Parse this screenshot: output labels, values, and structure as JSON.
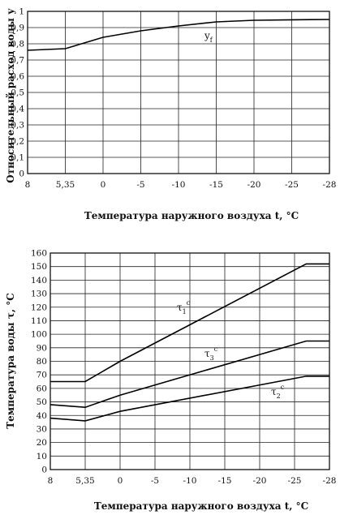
{
  "chart_data": [
    {
      "type": "line",
      "xlabel": "Температура наружного воздуха t, °C",
      "ylabel": "Относительный расход воды у",
      "x_ticks": [
        "8",
        "5,35",
        "0",
        "-5",
        "-10",
        "-15",
        "-20",
        "-25",
        "-28"
      ],
      "xlim": [
        8,
        -28
      ],
      "ylim": [
        0,
        1
      ],
      "y_ticks": [
        "0",
        "0,1",
        "0,2",
        "0,3",
        "0,4",
        "0,5",
        "0,6",
        "0,7",
        "0,8",
        "0,9",
        "1"
      ],
      "grid": true,
      "series": [
        {
          "name": "y_f",
          "label_main": "y",
          "label_sub": "f",
          "x": [
            8,
            5.35,
            0,
            -5,
            -10,
            -15,
            -20,
            -25,
            -28
          ],
          "values": [
            0.76,
            0.77,
            0.84,
            0.88,
            0.91,
            0.935,
            0.945,
            0.948,
            0.95
          ]
        }
      ]
    },
    {
      "type": "line",
      "xlabel": "Температура наружного воздуха t, °C",
      "ylabel": "Температура воды τ, °C",
      "x_ticks": [
        "8",
        "5,35",
        "0",
        "-5",
        "-10",
        "-15",
        "-20",
        "-25",
        "-28"
      ],
      "xlim": [
        8,
        -28
      ],
      "ylim": [
        0,
        160
      ],
      "y_ticks": [
        "0",
        "10",
        "20",
        "30",
        "40",
        "50",
        "60",
        "70",
        "80",
        "90",
        "100",
        "110",
        "120",
        "130",
        "140",
        "150",
        "160"
      ],
      "grid": true,
      "series": [
        {
          "name": "τ1c",
          "label_main": "τ",
          "label_sub": "1",
          "label_sup": "c",
          "x": [
            8,
            5.35,
            0,
            -26,
            -28
          ],
          "values": [
            65,
            65,
            80,
            152,
            152
          ]
        },
        {
          "name": "τ3c",
          "label_main": "τ",
          "label_sub": "3",
          "label_sup": "c",
          "x": [
            8,
            5.35,
            0,
            -26,
            -28
          ],
          "values": [
            48,
            46,
            55,
            95,
            95
          ]
        },
        {
          "name": "τ2c",
          "label_main": "τ",
          "label_sub": "2",
          "label_sup": "c",
          "x": [
            8,
            5.35,
            0,
            -26,
            -28
          ],
          "values": [
            38,
            36,
            43,
            69,
            69
          ]
        }
      ]
    }
  ]
}
